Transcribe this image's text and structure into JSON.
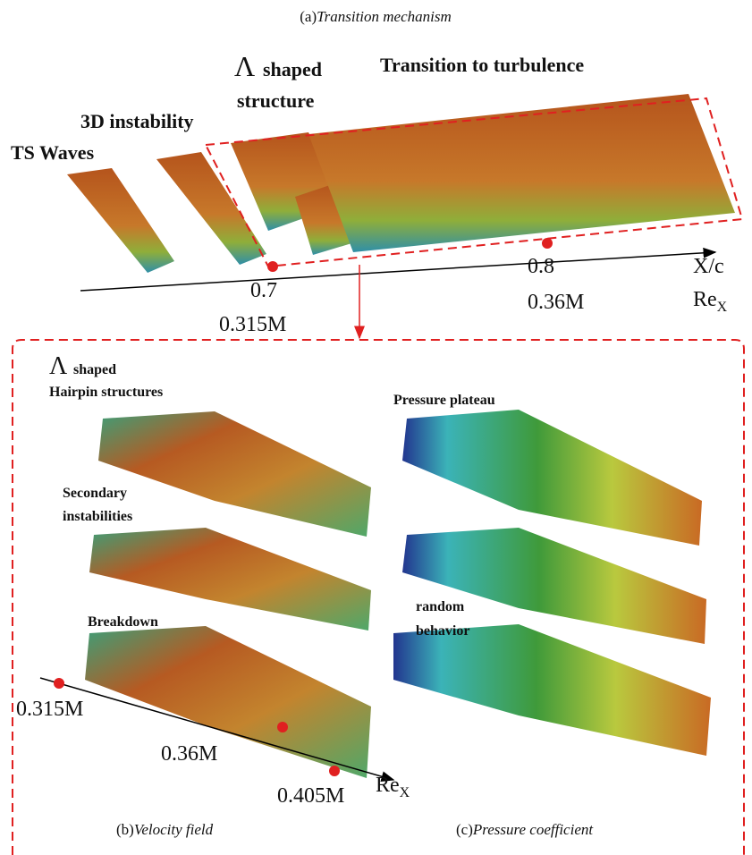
{
  "panel_a": {
    "label": "(a)",
    "caption": "Transition mechanism",
    "annotations": {
      "ts_waves": "TS Waves",
      "instability_3d": "3D instability",
      "lambda_symbol": "Λ",
      "lambda_shaped": "shaped",
      "lambda_structure": "structure",
      "transition": "Transition to turbulence"
    },
    "axis": {
      "tick_1_xc": "0.7",
      "tick_1_re": "0.315M",
      "tick_2_xc": "0.8",
      "tick_2_re": "0.36M",
      "xc_label": "X/c",
      "re_label": "Re",
      "re_subscript": "X"
    }
  },
  "panel_b": {
    "label": "(b)",
    "caption": "Velocity field",
    "annotations": {
      "lambda_symbol": "Λ",
      "lambda_shaped": "shaped",
      "hairpin": "Hairpin structures",
      "secondary_1": "Secondary",
      "secondary_2": "instabilities",
      "breakdown": "Breakdown"
    },
    "axis": {
      "tick_1": "0.315M",
      "tick_2": "0.36M",
      "tick_3": "0.405M",
      "re_label": "Re",
      "re_subscript": "X"
    }
  },
  "panel_c": {
    "label": "(c)",
    "caption": "Pressure coefficient",
    "annotations": {
      "plateau": "Pressure plateau",
      "random_1": "random",
      "random_2": "behavior"
    }
  }
}
